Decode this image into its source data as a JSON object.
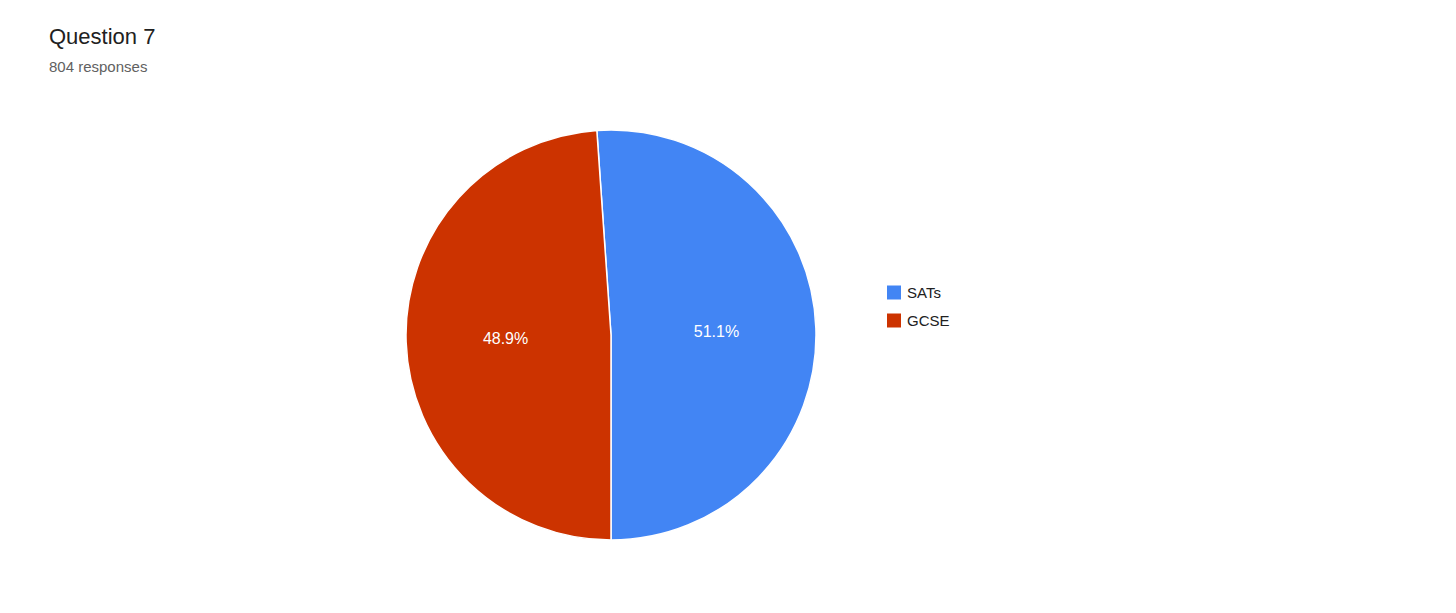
{
  "chart_data": {
    "type": "pie",
    "title": "Question 7",
    "subtitle": "804 responses",
    "categories": [
      "SATs",
      "GCSE"
    ],
    "values": [
      51.1,
      48.9
    ],
    "value_labels": [
      "51.1%",
      "48.9%"
    ],
    "colors": [
      "#4285F4",
      "#CC3300"
    ],
    "data_labels": true,
    "legend": "right"
  }
}
